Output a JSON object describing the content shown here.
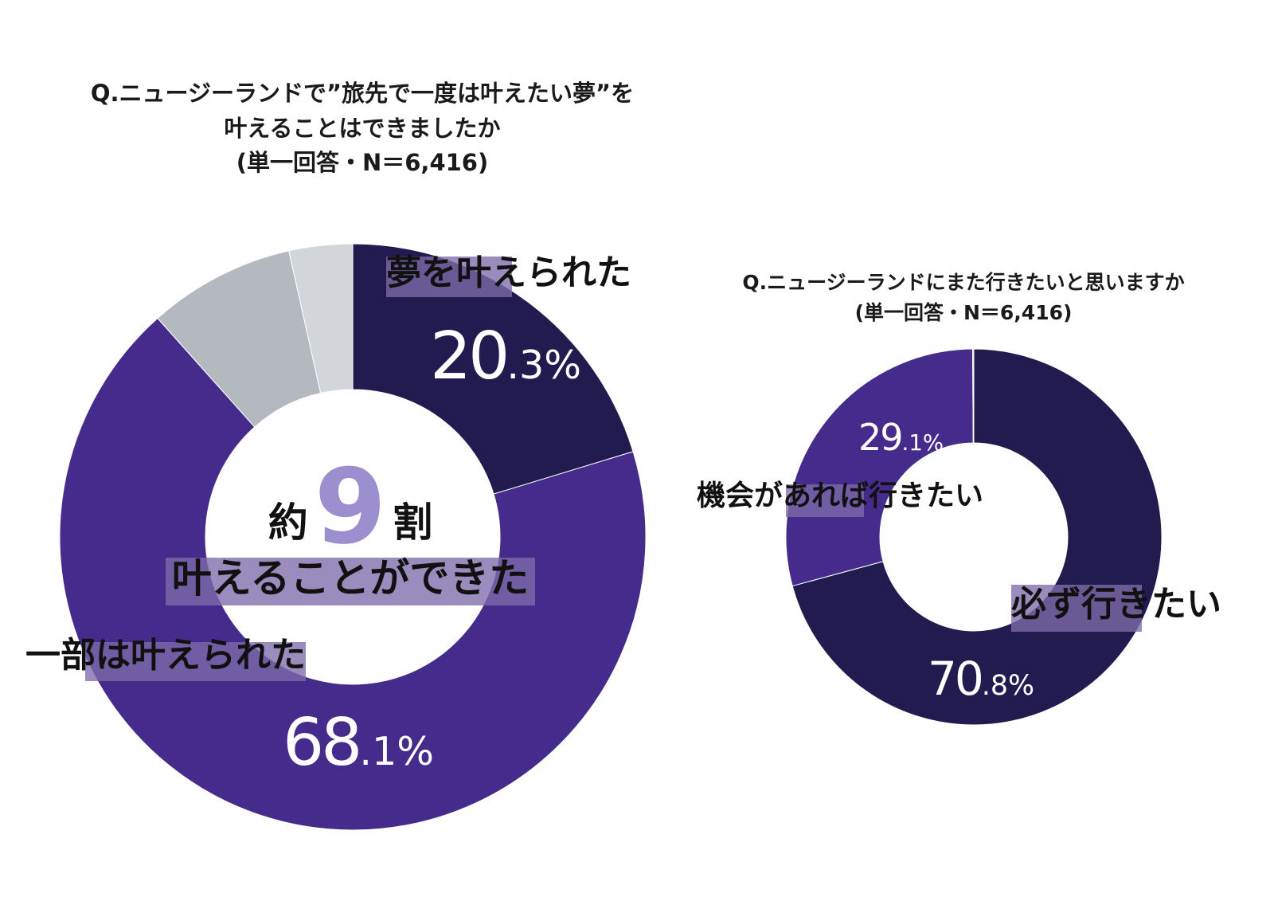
{
  "chart_data": [
    {
      "type": "pie",
      "title_lines": [
        "Q.ニュージーランドで”旅先で一度は叶えたい夢”を",
        "叶えることはできましたか",
        "(単一回答・N＝6,416)"
      ],
      "slices": [
        {
          "name": "夢を叶えられた",
          "value": 20.3,
          "color": "#221b4f",
          "pct_int": "20",
          "pct_dec": ".3%"
        },
        {
          "name": "一部は叶えられた",
          "value": 68.1,
          "color": "#452c8c",
          "pct_int": "68",
          "pct_dec": ".1%"
        },
        {
          "name": "",
          "value": 8.1,
          "color": "#b4b9c0"
        },
        {
          "name": "",
          "value": 3.5,
          "color": "#d2d6db"
        }
      ],
      "center": {
        "prefix": "約",
        "number": "9",
        "suffix": "割",
        "caption": "叶えることができた"
      }
    },
    {
      "type": "pie",
      "title_lines": [
        "Q.ニュージーランドにまた行きたいと思いますか",
        "(単一回答・N＝6,416)"
      ],
      "slices": [
        {
          "name": "必ず行きたい",
          "value": 70.8,
          "color": "#221b4f",
          "pct_int": "70",
          "pct_dec": ".8%"
        },
        {
          "name": "機会があれば行きたい",
          "value": 29.1,
          "color": "#452c8c",
          "pct_int": "29",
          "pct_dec": ".1%"
        },
        {
          "name": "",
          "value": 0.1,
          "color": "#d2d6db"
        }
      ]
    }
  ]
}
